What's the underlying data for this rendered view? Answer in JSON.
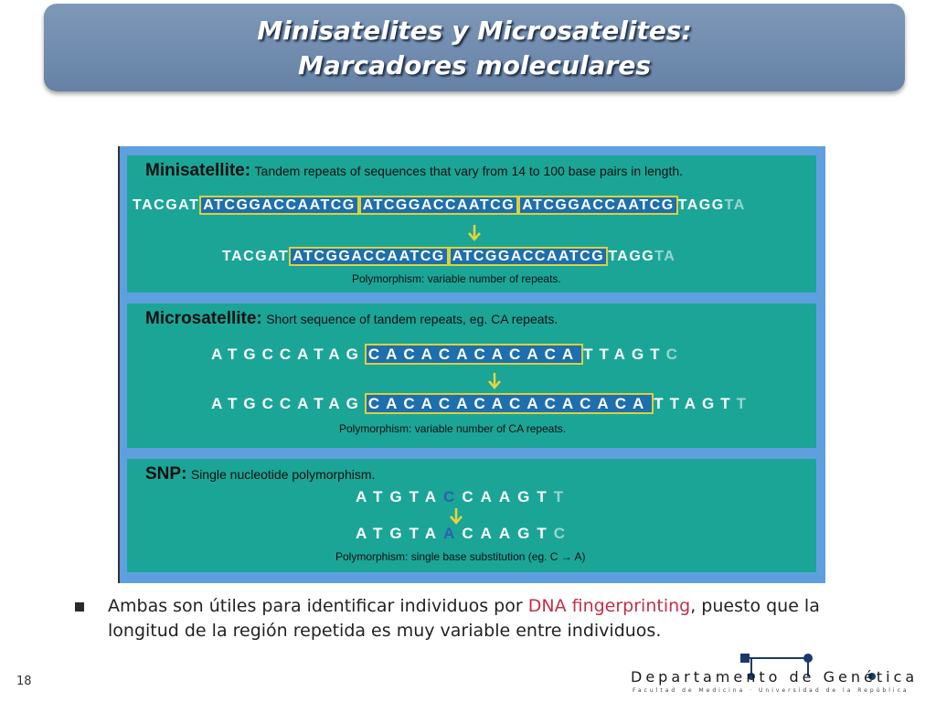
{
  "title": {
    "line1": "Minisatelites y Microsatelites:",
    "line2": "Marcadores moleculares"
  },
  "figure": {
    "minisatellite": {
      "heading": "Minisatellite:",
      "description": "Tandem repeats of sequences that vary from 14 to 100 base pairs in length.",
      "seq1": {
        "left": "TACGAT",
        "repeats": [
          "ATCGGACCAATCG",
          "ATCGGACCAATCG",
          "ATCGGACCAATCG"
        ],
        "right": "TAGG",
        "fade": "TA"
      },
      "seq2": {
        "left": "TACGAT",
        "repeats": [
          "ATCGGACCAATCG",
          "ATCGGACCAATCG"
        ],
        "right": "TAGG",
        "fade": "TA"
      },
      "polymorphism": "Polymorphism:  variable number of repeats."
    },
    "microsatellite": {
      "heading": "Microsatellite:",
      "description": "Short sequence of tandem repeats, eg. CA repeats.",
      "seq1": {
        "left": "ATGCCATAG",
        "repeat": "CACACACACACA",
        "right": "TTAGT",
        "fade": "C"
      },
      "seq2": {
        "left": "ATGCCATAG",
        "repeat": "CACACACACACACACA",
        "right": "TTAGT",
        "fade": "T"
      },
      "polymorphism": "Polymorphism:  variable number of CA repeats."
    },
    "snp": {
      "heading": "SNP:",
      "description": "Single nucleotide polymorphism.",
      "seq1": {
        "left": "ATGTA",
        "base": "C",
        "right": "CAAGT",
        "fade": "T"
      },
      "seq2": {
        "left": "ATGTA",
        "base": "A",
        "right": "CAAGT",
        "fade": "C"
      },
      "polymorphism": "Polymorphism:  single base substitution (eg. C → A)"
    }
  },
  "bullet": {
    "before": "Ambas son útiles para identificar individuos por ",
    "highlight": "DNA fingerprinting",
    "after": ", puesto que la longitud de la región repetida es muy variable entre individuos."
  },
  "slide_number": "18",
  "logo": {
    "name": "Departamento de Genética",
    "subtitle": "Facultad de Medicina · Universidad de la República"
  },
  "colors": {
    "title_bar": "#6f8bb0",
    "panel": "#1ba597",
    "frame": "#5f9fe0",
    "box_border": "#d8d23a",
    "arrow": "#e8d53a",
    "highlight_text": "#c0304a"
  }
}
